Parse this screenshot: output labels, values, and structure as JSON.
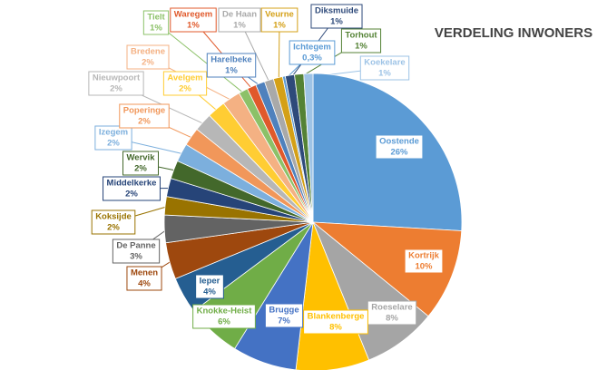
{
  "chart_data": {
    "type": "pie",
    "title": "VERDELING INWONERS",
    "categories": [
      "Oostende",
      "Kortrijk",
      "Roeselare",
      "Blankenberge",
      "Brugge",
      "Knokke-Heist",
      "Ieper",
      "Menen",
      "De Panne",
      "Koksijde",
      "Middelkerke",
      "Wervik",
      "Izegem",
      "Poperinge",
      "Nieuwpoort",
      "Avelgem",
      "Bredene",
      "Tielt",
      "Waregem",
      "Harelbeke",
      "De Haan",
      "Veurne",
      "Ichtegem",
      "Diksmuide",
      "Torhout",
      "Koekelare"
    ],
    "values": [
      26,
      10,
      8,
      8,
      7,
      6,
      4,
      4,
      3,
      2,
      2,
      2,
      2,
      2,
      2,
      2,
      2,
      1,
      1,
      1,
      1,
      1,
      0.3,
      1,
      1,
      1
    ],
    "value_labels": [
      "26%",
      "10%",
      "8%",
      "8%",
      "7%",
      "6%",
      "4%",
      "4%",
      "3%",
      "2%",
      "2%",
      "2%",
      "2%",
      "2%",
      "2%",
      "2%",
      "2%",
      "1%",
      "1%",
      "1%",
      "1%",
      "1%",
      "0,3%",
      "1%",
      "1%",
      "1%"
    ],
    "colors": [
      "#5b9bd5",
      "#ed7d31",
      "#a5a5a5",
      "#ffc000",
      "#4472c4",
      "#70ad47",
      "#255e91",
      "#9e480e",
      "#636363",
      "#997300",
      "#264478",
      "#43682b",
      "#7cafdd",
      "#f1975a",
      "#b7b7b7",
      "#ffcd33",
      "#f4b183",
      "#8cc168",
      "#e0592b",
      "#4f81bd",
      "#a9a9a9",
      "#d4a017",
      "#5b9bd5",
      "#2e4a7a",
      "#548235",
      "#9dc3e6"
    ]
  }
}
